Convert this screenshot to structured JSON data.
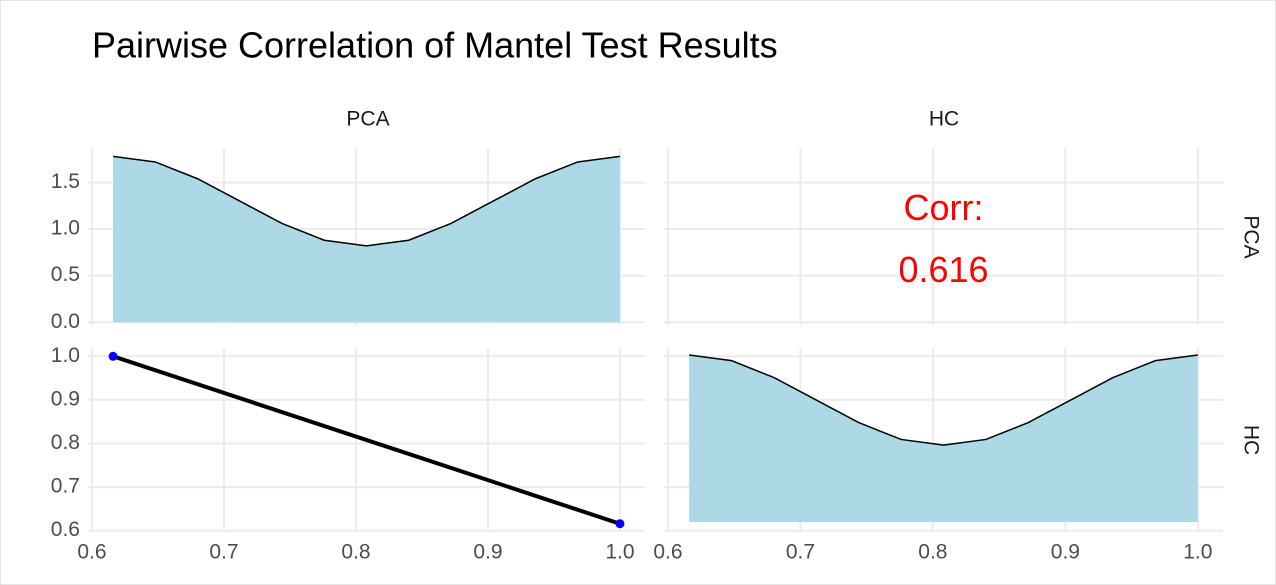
{
  "chart_data": {
    "title": "Pairwise Correlation of Mantel Test Results",
    "strip_labels": [
      "PCA",
      "HC"
    ],
    "xlim": [
      0.597,
      1.019
    ],
    "xticks": [
      0.6,
      0.7,
      0.8,
      0.9,
      {
        "value": 1,
        "label": "1.0"
      }
    ],
    "grid": true,
    "pca_density": {
      "type": "density",
      "x": [
        0.616,
        0.648,
        0.68,
        0.712,
        0.744,
        0.776,
        0.808,
        0.84,
        0.872,
        0.904,
        0.936,
        0.968,
        1.0
      ],
      "values": [
        1.78,
        1.72,
        1.54,
        1.3,
        1.06,
        0.88,
        0.82,
        0.88,
        1.06,
        1.3,
        1.54,
        1.72,
        1.78
      ],
      "ylim": [
        -0.03,
        1.87
      ],
      "yticks": [
        {
          "value": 0,
          "label": "0.0"
        },
        0.5,
        {
          "value": 1,
          "label": "1.0"
        },
        1.5
      ],
      "color": "#add8e6"
    },
    "correlation": {
      "type": "text",
      "label": "Corr:",
      "value": 0.616,
      "color": "#ff0000"
    },
    "scatter": {
      "type": "scatter",
      "x": [
        0.616,
        1.0
      ],
      "values": [
        1.0,
        0.616
      ],
      "ylim": [
        0.597,
        1.019
      ],
      "yticks": [
        0.6,
        0.7,
        0.8,
        0.9,
        {
          "value": 1,
          "label": "1.0"
        }
      ],
      "color": "#0000ff",
      "line_color": "#000000"
    },
    "hc_density": {
      "type": "density",
      "x": [
        0.616,
        0.648,
        0.68,
        0.712,
        0.744,
        0.776,
        0.808,
        0.84,
        0.872,
        0.904,
        0.936,
        0.968,
        1.0
      ],
      "values": [
        1.78,
        1.72,
        1.54,
        1.3,
        1.06,
        0.88,
        0.82,
        0.88,
        1.06,
        1.3,
        1.54,
        1.72,
        1.78
      ],
      "ylim": [
        -0.107,
        1.855
      ],
      "color": "#add8e6"
    }
  }
}
